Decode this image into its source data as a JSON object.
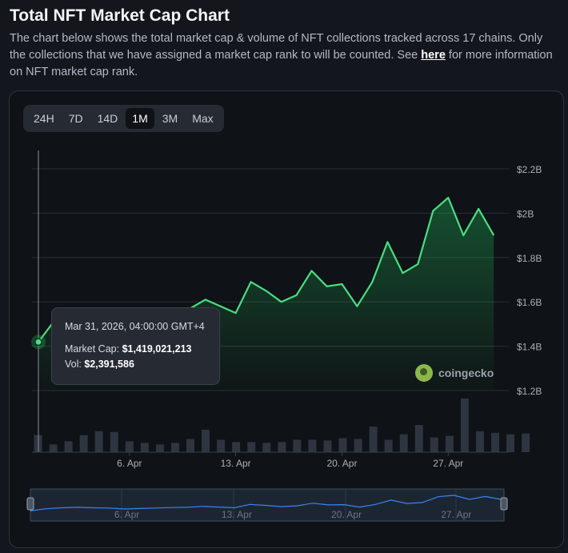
{
  "header": {
    "title": "Total NFT Market Cap Chart",
    "desc_before": "The chart below shows the total market cap & volume of NFT collections tracked across 17 chains. Only the collections that we have assigned a market cap rank to will be counted. See ",
    "link_text": "here",
    "desc_after": " for more information on NFT market cap rank."
  },
  "tabs": [
    "24H",
    "7D",
    "14D",
    "1M",
    "3M",
    "Max"
  ],
  "active_tab": "1M",
  "tooltip": {
    "date": "Mar 31, 2026, 04:00:00 GMT+4",
    "market_cap_label": "Market Cap:",
    "market_cap_value": "$1,419,021,213",
    "vol_label": "Vol:",
    "vol_value": "$2,391,586"
  },
  "watermark": "coingecko",
  "colors": {
    "line": "#4ade80",
    "accent_bg": "#0f1216"
  },
  "chart_data": {
    "type": "line",
    "y_ticks": [
      "$2.2B",
      "$2B",
      "$1.8B",
      "$1.6B",
      "$1.4B",
      "$1.2B"
    ],
    "ylim": [
      1.2,
      2.2
    ],
    "x_ticks": [
      {
        "label": "6. Apr",
        "day": 6
      },
      {
        "label": "13. Apr",
        "day": 13
      },
      {
        "label": "20. Apr",
        "day": 20
      },
      {
        "label": "27. Apr",
        "day": 27
      }
    ],
    "x_range_days": [
      0,
      30.2
    ],
    "series": [
      {
        "points": [
          [
            0,
            1.419
          ],
          [
            1,
            1.51
          ],
          [
            2,
            1.55
          ],
          [
            3,
            1.57
          ],
          [
            4,
            1.55
          ],
          [
            5,
            1.54
          ],
          [
            6,
            1.5
          ],
          [
            7,
            1.52
          ],
          [
            8,
            1.54
          ],
          [
            9,
            1.56
          ],
          [
            10,
            1.57
          ],
          [
            11,
            1.61
          ],
          [
            12,
            1.58
          ],
          [
            13,
            1.55
          ],
          [
            14,
            1.69
          ],
          [
            15,
            1.65
          ],
          [
            16,
            1.6
          ],
          [
            17,
            1.63
          ],
          [
            18,
            1.74
          ],
          [
            19,
            1.67
          ],
          [
            20,
            1.68
          ],
          [
            21,
            1.58
          ],
          [
            22,
            1.69
          ],
          [
            23,
            1.87
          ],
          [
            24,
            1.73
          ],
          [
            25,
            1.77
          ],
          [
            26,
            2.01
          ],
          [
            27,
            2.07
          ],
          [
            28,
            1.9
          ],
          [
            29,
            2.02
          ],
          [
            30,
            1.9
          ]
        ]
      },
      {
        "bars": [
          2.2,
          1.0,
          1.4,
          2.2,
          2.7,
          2.6,
          1.4,
          1.2,
          1.0,
          1.2,
          1.7,
          2.9,
          1.6,
          1.3,
          1.3,
          1.2,
          1.3,
          1.6,
          1.6,
          1.5,
          1.8,
          1.7,
          3.3,
          1.6,
          2.3,
          3.5,
          1.9,
          2.1,
          6.9,
          2.7,
          2.5,
          2.3,
          2.4
        ]
      }
    ],
    "grid": true
  }
}
